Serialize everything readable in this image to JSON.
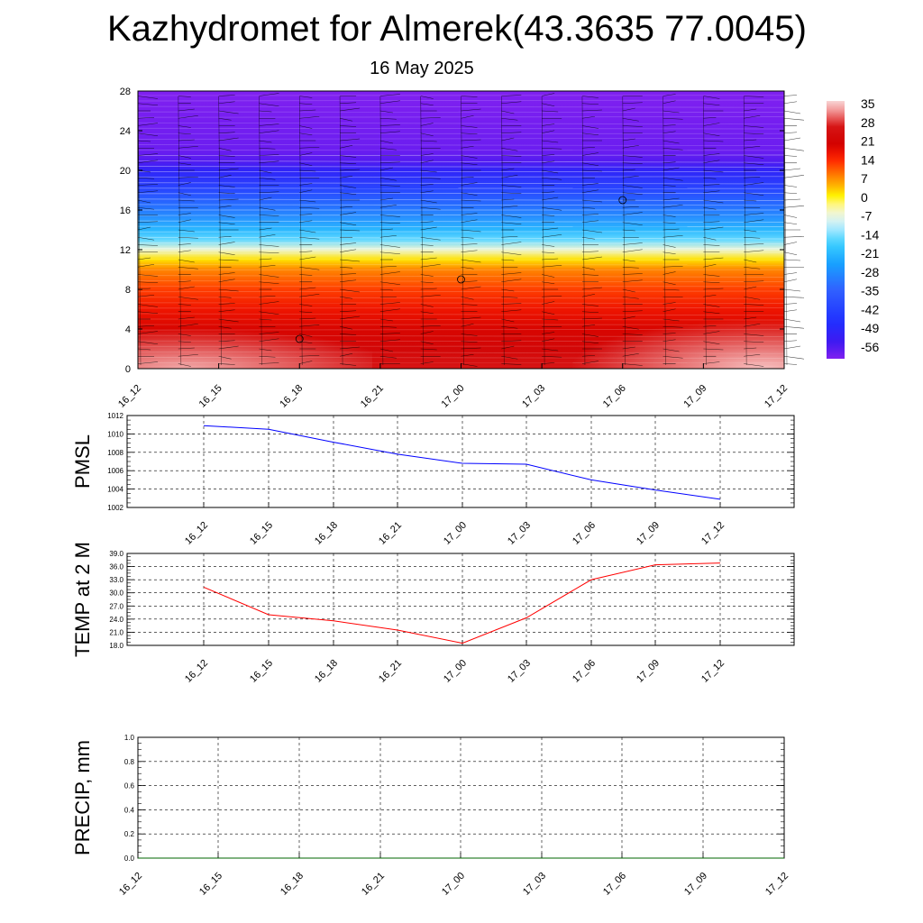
{
  "title": "Kazhydromet for Almerek(43.3635 77.0045)",
  "subtitle": "16 May 2025",
  "chart_data": [
    {
      "type": "heatmap",
      "title": "",
      "xlabel": "",
      "ylabel": "",
      "x_ticks": [
        "16_12",
        "16_15",
        "16_18",
        "16_21",
        "17_00",
        "17_03",
        "17_06",
        "17_09",
        "17_12"
      ],
      "y_ticks": [
        0,
        4,
        8,
        12,
        16,
        20,
        24,
        28
      ],
      "ylim": [
        0,
        28
      ],
      "colorbar": {
        "labels": [
          "35",
          "28",
          "21",
          "14",
          "7",
          "0",
          "-7",
          "-14",
          "-21",
          "-28",
          "-35",
          "-42",
          "-49",
          "-56"
        ],
        "range": [
          -60,
          38
        ]
      },
      "temperature_profile": [
        {
          "level": 0,
          "value": 28
        },
        {
          "level": 2,
          "value": 24
        },
        {
          "level": 4,
          "value": 21
        },
        {
          "level": 6,
          "value": 18
        },
        {
          "level": 8,
          "value": 14
        },
        {
          "level": 10,
          "value": 9
        },
        {
          "level": 11,
          "value": 3
        },
        {
          "level": 12,
          "value": -5
        },
        {
          "level": 13,
          "value": -14
        },
        {
          "level": 14,
          "value": -20
        },
        {
          "level": 16,
          "value": -30
        },
        {
          "level": 18,
          "value": -40
        },
        {
          "level": 20,
          "value": -50
        },
        {
          "level": 21,
          "value": -56
        },
        {
          "level": 22,
          "value": -58
        },
        {
          "level": 28,
          "value": -60
        }
      ],
      "markers": [
        {
          "x": "16_18",
          "level": 3
        },
        {
          "x": "17_00",
          "level": 9
        },
        {
          "x": "17_06",
          "level": 17
        }
      ],
      "colors": {
        "hot": "#f8d0d0",
        "red": "#d00000",
        "orange": "#ff6a00",
        "yellow": "#fff200",
        "lightblue": "#aee8ff",
        "cyan": "#1ec8ff",
        "blue": "#2040ff",
        "purple": "#8020f0"
      }
    },
    {
      "type": "line",
      "ylabel": "PMSL",
      "ylim": [
        1002,
        1012
      ],
      "y_ticks": [
        "1002",
        "1004",
        "1006",
        "1008",
        "1010",
        "1012"
      ],
      "x_ticks": [
        "16_12",
        "16_15",
        "16_18",
        "16_21",
        "17_00",
        "17_03",
        "17_06",
        "17_09",
        "17_12"
      ],
      "series": [
        {
          "values": [
            1010.9,
            1010.5,
            1009.1,
            1007.8,
            1006.8,
            1006.7,
            1005.0,
            1003.9,
            1002.9
          ],
          "color": "#0000ff"
        }
      ]
    },
    {
      "type": "line",
      "ylabel": "TEMP at 2 M",
      "ylim": [
        18,
        39
      ],
      "y_ticks": [
        "18.0",
        "21.0",
        "24.0",
        "27.0",
        "30.0",
        "33.0",
        "36.0",
        "39.0"
      ],
      "x_ticks": [
        "16_12",
        "16_15",
        "16_18",
        "16_21",
        "17_00",
        "17_03",
        "17_06",
        "17_09",
        "17_12"
      ],
      "series": [
        {
          "values": [
            31.3,
            25.0,
            23.6,
            21.5,
            18.5,
            24.3,
            33.0,
            36.4,
            36.8
          ],
          "color": "#ff0000"
        }
      ]
    },
    {
      "type": "line",
      "ylabel": "PRECIP, mm",
      "ylim": [
        0,
        1
      ],
      "y_ticks": [
        "0.0",
        "0.2",
        "0.4",
        "0.6",
        "0.8",
        "1.0"
      ],
      "x_ticks": [
        "16_12",
        "16_15",
        "16_18",
        "16_21",
        "17_00",
        "17_03",
        "17_06",
        "17_09",
        "17_12"
      ],
      "series": [
        {
          "values": [
            0,
            0,
            0,
            0,
            0,
            0,
            0,
            0,
            0
          ],
          "color": "#006400"
        }
      ]
    }
  ]
}
